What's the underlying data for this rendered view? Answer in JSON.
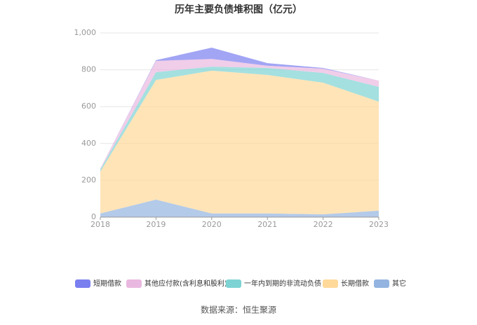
{
  "chart_data": {
    "type": "stacked_area",
    "title": "历年主要负债堆积图（亿元）",
    "source": "数据来源：恒生聚源",
    "categories": [
      "2018",
      "2019",
      "2020",
      "2021",
      "2022",
      "2023"
    ],
    "series": [
      {
        "name": "短期借款",
        "color": "#7a7ff0",
        "values": [
          0,
          4,
          61,
          14,
          4,
          0
        ]
      },
      {
        "name": "其他应付款(含利息和股利)",
        "color": "#e9b8e0",
        "values": [
          5,
          61,
          42,
          12,
          23,
          34
        ]
      },
      {
        "name": "一年内到期的非流动负债",
        "color": "#7dd3d3",
        "values": [
          12,
          42,
          22,
          38,
          53,
          80
        ]
      },
      {
        "name": "长期借款",
        "color": "#ffd99a",
        "values": [
          227,
          650,
          775,
          752,
          715,
          592
        ]
      },
      {
        "name": "其它",
        "color": "#93b4e0",
        "values": [
          20,
          95,
          20,
          20,
          15,
          35
        ]
      }
    ],
    "ylim": [
      0,
      1000
    ],
    "yticks": [
      0,
      200,
      400,
      600,
      800,
      {
        "value": 1000,
        "label": "1,000"
      }
    ],
    "grid": true
  }
}
